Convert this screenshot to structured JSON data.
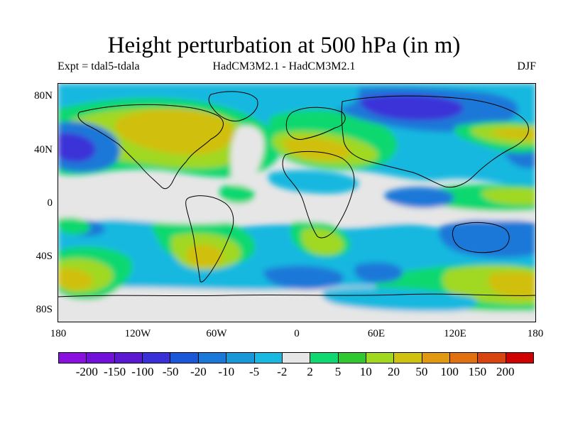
{
  "title": "Height perturbation at 500 hPa (in m)",
  "subtitle_left": "Expt = tdal5-tdala",
  "subtitle_center": "HadCM3M2.1 - HadCM3M2.1",
  "subtitle_right": "DJF",
  "lat_labels": [
    "80N",
    "40N",
    "0",
    "40S",
    "80S"
  ],
  "lat_values": [
    80,
    40,
    0,
    -40,
    -80
  ],
  "lon_labels": [
    "180",
    "120W",
    "60W",
    "0",
    "60E",
    "120E",
    "180"
  ],
  "lon_values": [
    -180,
    -120,
    -60,
    0,
    60,
    120,
    180
  ],
  "colorbar": {
    "colors": [
      "#8a10e0",
      "#7010d8",
      "#5a18d0",
      "#3a30d8",
      "#1a58d8",
      "#1a78d8",
      "#1898d8",
      "#18b8e0",
      "#e6e6e6",
      "#10d870",
      "#30c830",
      "#a0d820",
      "#d0c010",
      "#e09810",
      "#e07010",
      "#d84410",
      "#d00000"
    ],
    "labels": [
      "-200",
      "-150",
      "-100",
      "-50",
      "-20",
      "-10",
      "-5",
      "-2",
      "2",
      "5",
      "10",
      "20",
      "50",
      "100",
      "150",
      "200"
    ]
  },
  "map_palette": {
    "neutral": "#e6e6e6",
    "cyan": "#18b8e0",
    "mid_blue": "#1898d8",
    "blue": "#1a78d8",
    "deep_blue": "#3a30d8",
    "violet": "#5a18d0",
    "green": "#10d870",
    "lime": "#a0d820",
    "mustard": "#d0c010",
    "coast": "#000000"
  }
}
